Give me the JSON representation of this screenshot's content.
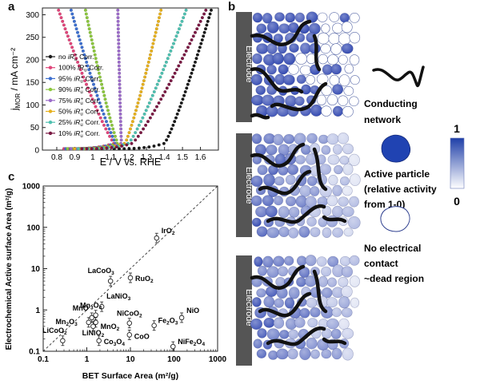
{
  "panels": {
    "a": "a",
    "b": "b",
    "c": "c"
  },
  "chart_data": [
    {
      "type": "line",
      "panel": "a",
      "xlabel": "E / V vs. RHE",
      "ylabel": "j",
      "ylabel_sub": "MOR",
      "ylabel_unit": " / mA cm⁻²",
      "xlim": [
        0.72,
        1.7
      ],
      "ylim": [
        0,
        315
      ],
      "xticks": [
        0.8,
        0.9,
        1.0,
        1.1,
        1.2,
        1.3,
        1.4,
        1.5,
        1.6
      ],
      "xtick_labels": [
        "0.8",
        "0.9",
        "1",
        "1.1",
        "1.2",
        "1.3",
        "1.4",
        "1.5",
        "1.6"
      ],
      "yticks": [
        0,
        50,
        100,
        150,
        200,
        250,
        300
      ],
      "series": [
        {
          "name_pre": "no ",
          "name_post": " Corr.",
          "color": "#1a1a1a",
          "onset": 1.4,
          "end": 1.66
        },
        {
          "name_pre": "100% ",
          "name_post": " Corr.",
          "color": "#e0457a",
          "onset": 1.12,
          "end": 0.81
        },
        {
          "name_pre": "95% ",
          "name_post": " Corr.",
          "color": "#3d6fcf",
          "onset": 1.13,
          "end": 0.88
        },
        {
          "name_pre": "90% ",
          "name_post": " Corr.",
          "color": "#8cc63f",
          "onset": 1.14,
          "end": 0.96
        },
        {
          "name_pre": "75% ",
          "name_post": " Corr.",
          "color": "#9b6bc9",
          "onset": 1.16,
          "end": 1.14
        },
        {
          "name_pre": "50% ",
          "name_post": " Corr.",
          "color": "#e6b01e",
          "onset": 1.18,
          "end": 1.38
        },
        {
          "name_pre": "25% ",
          "name_post": " Corr.",
          "color": "#4fc0b0",
          "onset": 1.2,
          "end": 1.52
        },
        {
          "name_pre": "10% ",
          "name_post": " Corr.",
          "color": "#7a1a44",
          "onset": 1.22,
          "end": 1.63
        }
      ]
    },
    {
      "type": "scatter",
      "panel": "c",
      "xlabel": "BET Surface Area (m²/g)",
      "ylabel": "Electrochemical Active surface Area (m²/g)",
      "xscale": "log",
      "yscale": "log",
      "xlim": [
        0.1,
        1000
      ],
      "ylim": [
        0.1,
        1000
      ],
      "xticks": [
        0.1,
        1,
        10,
        100,
        1000
      ],
      "xtick_labels": [
        "0.1",
        "1",
        "10",
        "100",
        "1000"
      ],
      "yticks": [
        0.1,
        1,
        10,
        100,
        1000
      ],
      "ytick_labels": [
        "0.1",
        "1",
        "10",
        "100",
        "1000"
      ],
      "reference_line": "y = x",
      "points": [
        {
          "name": "IrO",
          "sub": "2",
          "x": 40,
          "y": 55
        },
        {
          "name": "LaCoO",
          "sub": "3",
          "x": 3.5,
          "y": 5
        },
        {
          "name": "RuO",
          "sub": "2",
          "x": 10,
          "y": 6
        },
        {
          "name": "LaNiO",
          "sub": "3",
          "x": 2.2,
          "y": 1.2
        },
        {
          "name": "Mn",
          "sub": "3",
          "post": "O",
          "sub2": "4",
          "x": 1.6,
          "y": 0.75
        },
        {
          "name": "MnO",
          "x": 1.3,
          "y": 0.65
        },
        {
          "name": "Mn",
          "sub": "2",
          "post": "O",
          "sub2": "3",
          "x": 1.1,
          "y": 0.5
        },
        {
          "name": "MnO",
          "sub": "2",
          "x": 1.6,
          "y": 0.5
        },
        {
          "name": "LiNiO",
          "sub": "2",
          "x": 1.4,
          "y": 0.4
        },
        {
          "name": "LiCoO",
          "sub": "2",
          "x": 0.28,
          "y": 0.18
        },
        {
          "name": "Co",
          "sub": "3",
          "post": "O",
          "sub2": "4",
          "x": 1.9,
          "y": 0.18
        },
        {
          "name": "NiCoO",
          "sub": "2",
          "x": 9.5,
          "y": 0.48
        },
        {
          "name": "CoO",
          "x": 9.5,
          "y": 0.25
        },
        {
          "name": "Fe",
          "sub": "2",
          "post": "O",
          "sub2": "3",
          "x": 35,
          "y": 0.42
        },
        {
          "name": "NiO",
          "x": 150,
          "y": 0.65
        },
        {
          "name": "NiFe",
          "sub": "2",
          "post": "O",
          "sub2": "4",
          "x": 95,
          "y": 0.13
        }
      ]
    }
  ],
  "schematic": {
    "electrode_label": "Electrode",
    "legend": {
      "network_label": [
        "Conducting",
        "network"
      ],
      "active_label": [
        "Active particle",
        "(relative activity",
        "from 1-0)"
      ],
      "dead_label": [
        "No electrical",
        "contact",
        "~dead region"
      ],
      "scale_max": "1",
      "scale_min": "0"
    }
  }
}
